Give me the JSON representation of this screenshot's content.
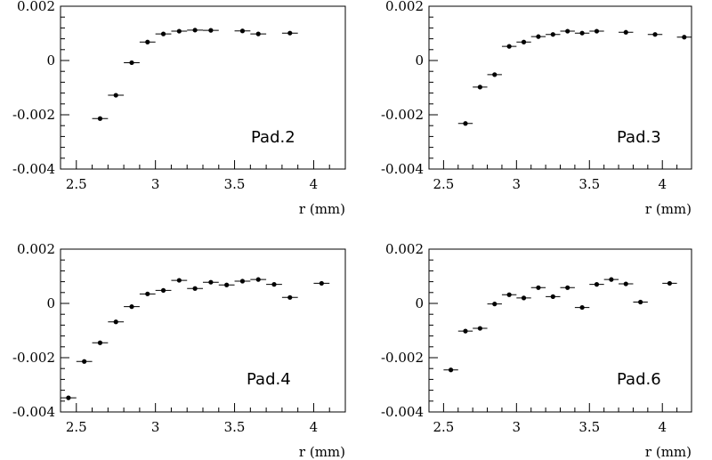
{
  "chart_data": [
    {
      "type": "scatter",
      "annotation": "Pad.2",
      "xlabel": "r (mm)",
      "ylabel": "",
      "xlim": [
        2.4,
        4.2
      ],
      "ylim": [
        -0.004,
        0.002
      ],
      "xticks": [
        "2.5",
        "3",
        "3.5",
        "4"
      ],
      "yticks": [
        "0.002",
        "0",
        "-0.002",
        "-0.004"
      ],
      "x_err": 0.05,
      "points": [
        {
          "x": 2.65,
          "y": -0.00214
        },
        {
          "x": 2.75,
          "y": -0.00128
        },
        {
          "x": 2.85,
          "y": -8e-05
        },
        {
          "x": 2.95,
          "y": 0.00068
        },
        {
          "x": 3.05,
          "y": 0.00098
        },
        {
          "x": 3.15,
          "y": 0.00108
        },
        {
          "x": 3.25,
          "y": 0.00112
        },
        {
          "x": 3.35,
          "y": 0.00111
        },
        {
          "x": 3.55,
          "y": 0.00109
        },
        {
          "x": 3.65,
          "y": 0.00098
        },
        {
          "x": 3.85,
          "y": 0.00101
        }
      ]
    },
    {
      "type": "scatter",
      "annotation": "Pad.3",
      "xlabel": "r (mm)",
      "ylabel": "",
      "xlim": [
        2.4,
        4.2
      ],
      "ylim": [
        -0.004,
        0.002
      ],
      "xticks": [
        "2.5",
        "3",
        "3.5",
        "4"
      ],
      "yticks": [
        "0.002",
        "0",
        "-0.002",
        "-0.004"
      ],
      "x_err": 0.05,
      "points": [
        {
          "x": 2.65,
          "y": -0.00232
        },
        {
          "x": 2.75,
          "y": -0.00098
        },
        {
          "x": 2.85,
          "y": -0.00052
        },
        {
          "x": 2.95,
          "y": 0.00052
        },
        {
          "x": 3.05,
          "y": 0.00068
        },
        {
          "x": 3.15,
          "y": 0.00088
        },
        {
          "x": 3.25,
          "y": 0.00096
        },
        {
          "x": 3.35,
          "y": 0.00108
        },
        {
          "x": 3.45,
          "y": 0.00101
        },
        {
          "x": 3.55,
          "y": 0.00108
        },
        {
          "x": 3.75,
          "y": 0.00104
        },
        {
          "x": 3.95,
          "y": 0.00096
        },
        {
          "x": 4.15,
          "y": 0.00086
        }
      ]
    },
    {
      "type": "scatter",
      "annotation": "Pad.4",
      "xlabel": "r (mm)",
      "ylabel": "",
      "xlim": [
        2.4,
        4.2
      ],
      "ylim": [
        -0.004,
        0.002
      ],
      "xticks": [
        "2.5",
        "3",
        "3.5",
        "4"
      ],
      "yticks": [
        "0.002",
        "0",
        "-0.002",
        "-0.004"
      ],
      "x_err": 0.05,
      "points": [
        {
          "x": 2.45,
          "y": -0.00348
        },
        {
          "x": 2.55,
          "y": -0.00214
        },
        {
          "x": 2.65,
          "y": -0.00145
        },
        {
          "x": 2.75,
          "y": -0.00068
        },
        {
          "x": 2.85,
          "y": -0.00012
        },
        {
          "x": 2.95,
          "y": 0.00035
        },
        {
          "x": 3.05,
          "y": 0.00048
        },
        {
          "x": 3.15,
          "y": 0.00085
        },
        {
          "x": 3.25,
          "y": 0.00055
        },
        {
          "x": 3.35,
          "y": 0.00078
        },
        {
          "x": 3.45,
          "y": 0.00068
        },
        {
          "x": 3.55,
          "y": 0.00082
        },
        {
          "x": 3.65,
          "y": 0.00088
        },
        {
          "x": 3.75,
          "y": 0.0007
        },
        {
          "x": 3.85,
          "y": 0.00022
        },
        {
          "x": 4.05,
          "y": 0.00074
        }
      ]
    },
    {
      "type": "scatter",
      "annotation": "Pad.6",
      "xlabel": "r (mm)",
      "ylabel": "",
      "xlim": [
        2.4,
        4.2
      ],
      "ylim": [
        -0.004,
        0.002
      ],
      "xticks": [
        "2.5",
        "3",
        "3.5",
        "4"
      ],
      "yticks": [
        "0.002",
        "0",
        "-0.002",
        "-0.004"
      ],
      "x_err": 0.05,
      "points": [
        {
          "x": 2.55,
          "y": -0.00245
        },
        {
          "x": 2.65,
          "y": -0.00102
        },
        {
          "x": 2.75,
          "y": -0.00092
        },
        {
          "x": 2.85,
          "y": -2e-05
        },
        {
          "x": 2.95,
          "y": 0.00032
        },
        {
          "x": 3.05,
          "y": 0.0002
        },
        {
          "x": 3.15,
          "y": 0.00058
        },
        {
          "x": 3.25,
          "y": 0.00025
        },
        {
          "x": 3.35,
          "y": 0.00058
        },
        {
          "x": 3.45,
          "y": -0.00015
        },
        {
          "x": 3.55,
          "y": 0.0007
        },
        {
          "x": 3.65,
          "y": 0.00088
        },
        {
          "x": 3.75,
          "y": 0.00072
        },
        {
          "x": 3.85,
          "y": 5e-05
        },
        {
          "x": 4.05,
          "y": 0.00074
        }
      ]
    }
  ]
}
